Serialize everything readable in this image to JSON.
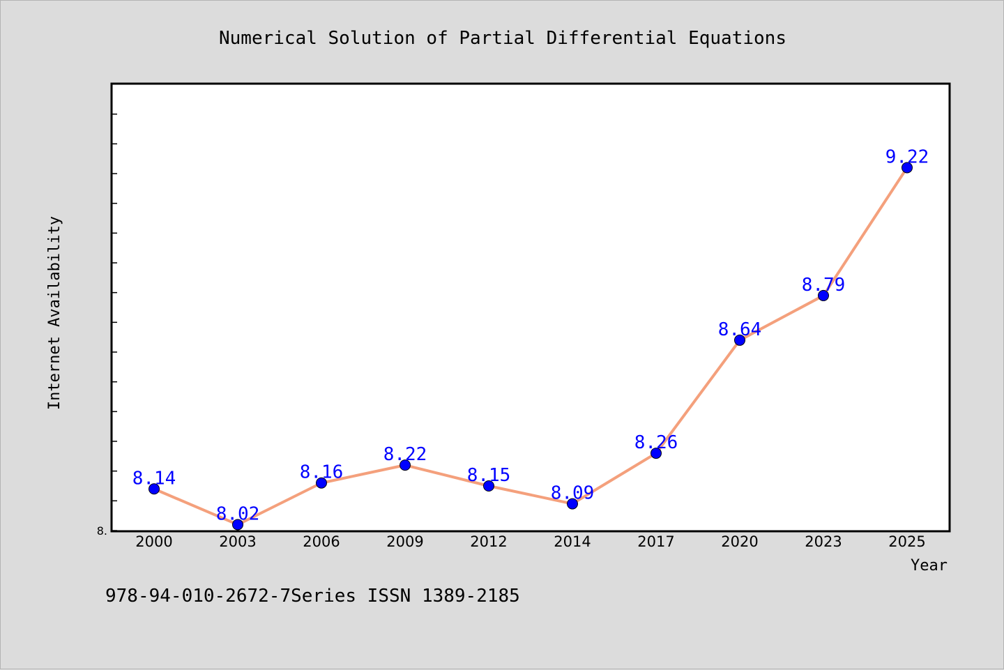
{
  "chart_data": {
    "type": "line",
    "title": "Numerical Solution of Partial Differential Equations",
    "xlabel": "Year",
    "ylabel": "Internet Availability",
    "categories": [
      "2000",
      "2003",
      "2006",
      "2009",
      "2012",
      "2014",
      "2017",
      "2020",
      "2023",
      "2025"
    ],
    "series": [
      {
        "values": [
          8.14,
          8.02,
          8.16,
          8.22,
          8.15,
          8.09,
          8.26,
          8.64,
          8.79,
          9.22
        ]
      }
    ],
    "data_labels": [
      "8.14",
      "8.02",
      "8.16",
      "8.22",
      "8.15",
      "8.09",
      "8.26",
      "8.64",
      "8.79",
      "9.22"
    ],
    "ylim": [
      8.0,
      9.5
    ],
    "y_tick_label": "8.",
    "grid": false,
    "line_color": "#f4a07c",
    "marker_color": "#0000ff",
    "label_color": "#0000ff"
  },
  "footer": {
    "text": "978-94-010-2672-7Series ISSN 1389-2185"
  }
}
